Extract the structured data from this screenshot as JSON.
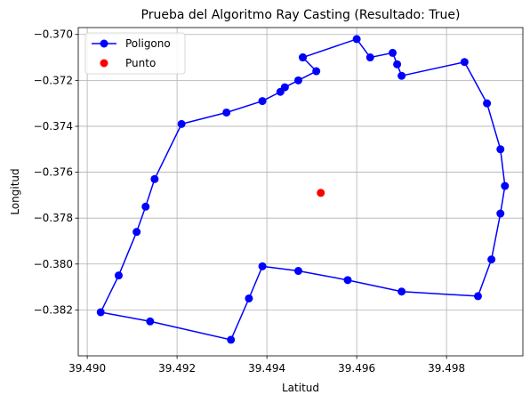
{
  "chart_data": {
    "type": "line",
    "title": "Prueba del Algoritmo Ray Casting (Resultado: True)",
    "xlabel": "Latitud",
    "ylabel": "Longitud",
    "xlim": [
      39.4898,
      39.4997
    ],
    "ylim": [
      -0.384,
      -0.3697
    ],
    "xticks": [
      39.49,
      39.492,
      39.494,
      39.496,
      39.498
    ],
    "xtick_labels": [
      "39.490",
      "39.492",
      "39.494",
      "39.496",
      "39.498"
    ],
    "yticks": [
      -0.37,
      -0.372,
      -0.374,
      -0.376,
      -0.378,
      -0.38,
      -0.382
    ],
    "ytick_labels": [
      "−0.370",
      "−0.372",
      "−0.374",
      "−0.376",
      "−0.378",
      "−0.380",
      "−0.382"
    ],
    "grid": true,
    "legend_position": "top-left",
    "series": [
      {
        "name": "Poligono",
        "color": "#0000ff",
        "style": "line-with-markers",
        "x": [
          39.4948,
          39.496,
          39.4963,
          39.4968,
          39.4969,
          39.497,
          39.4984,
          39.4989,
          39.4992,
          39.4993,
          39.4992,
          39.499,
          39.4987,
          39.497,
          39.4958,
          39.4947,
          39.4939,
          39.4936,
          39.4932,
          39.4914,
          39.4903,
          39.4907,
          39.4911,
          39.4913,
          39.4915,
          39.4921,
          39.4931,
          39.4939,
          39.4943,
          39.4944,
          39.4947,
          39.4951,
          39.4948
        ],
        "y": [
          -0.371,
          -0.3702,
          -0.371,
          -0.3708,
          -0.3713,
          -0.3718,
          -0.3712,
          -0.373,
          -0.375,
          -0.3766,
          -0.3778,
          -0.3798,
          -0.3814,
          -0.3812,
          -0.3807,
          -0.3803,
          -0.3801,
          -0.3815,
          -0.3833,
          -0.3825,
          -0.3821,
          -0.3805,
          -0.3786,
          -0.3775,
          -0.3763,
          -0.3739,
          -0.3734,
          -0.3729,
          -0.3725,
          -0.3723,
          -0.372,
          -0.3716,
          -0.371
        ]
      },
      {
        "name": "Punto",
        "color": "#ff0000",
        "style": "markers",
        "x": [
          39.4952
        ],
        "y": [
          -0.3769
        ]
      }
    ]
  }
}
